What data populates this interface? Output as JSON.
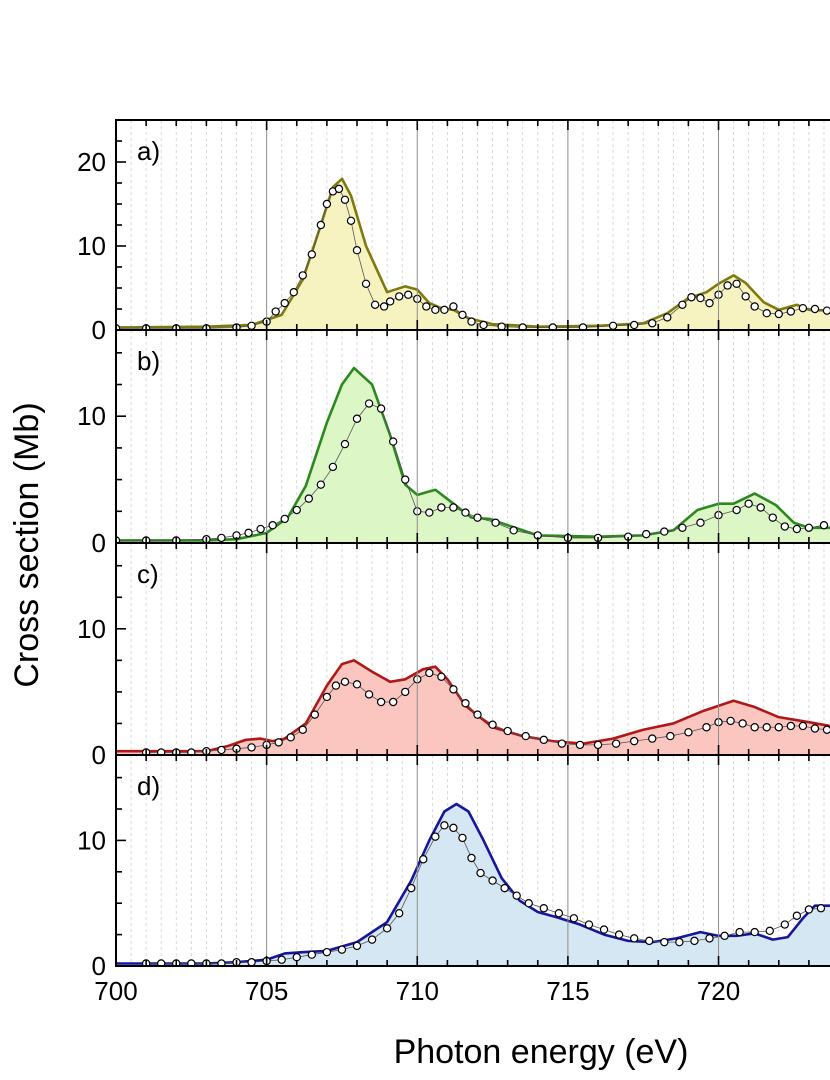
{
  "chart_data": {
    "type": "line",
    "xlabel": "Photon energy (eV)",
    "ylabel": "Cross section (Mb)",
    "xlim": [
      700,
      723.7
    ],
    "x_ticks": [
      "700",
      "705",
      "710",
      "715",
      "720"
    ],
    "x_tick_values": [
      700,
      705,
      710,
      715,
      720
    ],
    "major_gridlines_x": [
      705,
      710,
      715,
      720
    ],
    "minor_gridlines": "dashed, every 0.5 eV",
    "panels": [
      {
        "label": "a)",
        "ylim": [
          0,
          25
        ],
        "y_ticks": [
          "0",
          "10",
          "20"
        ],
        "y_tick_values": [
          0,
          10,
          20
        ],
        "line_color": "#7f7a0e",
        "fill_color": "#f7f3c0",
        "theory_curve": {
          "x": [
            700,
            703,
            704.5,
            705.5,
            706.2,
            706.8,
            707.2,
            707.5,
            707.8,
            708.3,
            709.0,
            709.6,
            710.0,
            710.4,
            710.8,
            711.2,
            711.7,
            712.5,
            714.0,
            716.0,
            717.5,
            718.3,
            719.0,
            719.6,
            720.0,
            720.5,
            720.9,
            721.5,
            722.0,
            722.6,
            723.0,
            723.7
          ],
          "y": [
            0.3,
            0.4,
            0.6,
            1.8,
            6.0,
            12.5,
            17.0,
            18.0,
            16.0,
            10.0,
            4.5,
            5.2,
            4.8,
            3.2,
            2.6,
            2.4,
            1.4,
            0.7,
            0.4,
            0.5,
            0.8,
            2.0,
            3.8,
            4.5,
            5.5,
            6.5,
            5.6,
            3.3,
            2.4,
            3.0,
            2.4,
            2.3
          ]
        },
        "experiment_points": {
          "x": [
            700,
            701,
            702,
            703,
            704,
            704.5,
            705.0,
            705.3,
            705.6,
            705.9,
            706.2,
            706.5,
            706.8,
            707.0,
            707.2,
            707.4,
            707.6,
            707.8,
            708.0,
            708.3,
            708.6,
            708.9,
            709.1,
            709.4,
            709.7,
            710.0,
            710.3,
            710.6,
            710.9,
            711.2,
            711.5,
            711.8,
            712.2,
            712.8,
            713.5,
            714.5,
            715.5,
            716.5,
            717.2,
            717.8,
            718.3,
            718.8,
            719.1,
            719.4,
            719.7,
            720.0,
            720.3,
            720.6,
            720.9,
            721.2,
            721.6,
            722.0,
            722.4,
            722.8,
            723.2,
            723.6
          ],
          "y": [
            0.2,
            0.2,
            0.2,
            0.2,
            0.3,
            0.5,
            1.0,
            2.2,
            3.2,
            4.5,
            6.5,
            9.0,
            12.5,
            15.0,
            16.5,
            16.8,
            15.5,
            13.0,
            9.5,
            5.5,
            3.0,
            2.8,
            3.4,
            4.0,
            4.2,
            3.7,
            2.8,
            2.4,
            2.4,
            2.8,
            1.8,
            1.0,
            0.6,
            0.4,
            0.3,
            0.3,
            0.3,
            0.5,
            0.6,
            0.8,
            1.5,
            3.0,
            3.9,
            3.8,
            3.2,
            4.2,
            5.3,
            5.5,
            4.0,
            2.8,
            2.0,
            1.9,
            2.2,
            2.6,
            2.5,
            2.3
          ]
        }
      },
      {
        "label": "b)",
        "ylim": [
          0,
          16.8
        ],
        "y_ticks": [
          "0",
          "10"
        ],
        "y_tick_values": [
          0,
          10
        ],
        "line_color": "#2b8a1e",
        "fill_color": "#dcf6c6",
        "theory_curve": {
          "x": [
            700,
            703,
            704,
            705,
            705.7,
            706.3,
            707.0,
            707.5,
            707.9,
            708.5,
            709.1,
            709.6,
            710.0,
            710.6,
            711.2,
            711.8,
            712.4,
            713.0,
            714.0,
            716.0,
            717.5,
            718.5,
            719.3,
            720.0,
            720.5,
            721.2,
            721.9,
            722.5,
            723.0,
            723.7
          ],
          "y": [
            0.2,
            0.2,
            0.3,
            0.8,
            2.0,
            4.5,
            9.5,
            12.5,
            13.8,
            12.5,
            8.5,
            4.6,
            3.8,
            4.2,
            3.1,
            2.0,
            1.9,
            1.4,
            0.6,
            0.5,
            0.6,
            1.0,
            2.6,
            3.1,
            3.1,
            3.9,
            3.0,
            1.6,
            1.2,
            1.2
          ]
        },
        "experiment_points": {
          "x": [
            700,
            701,
            702,
            703,
            703.5,
            704.0,
            704.4,
            704.8,
            705.2,
            705.6,
            706.0,
            706.4,
            706.8,
            707.2,
            707.6,
            708.0,
            708.4,
            708.8,
            709.2,
            709.6,
            710.0,
            710.4,
            710.8,
            711.2,
            711.6,
            712.0,
            712.6,
            713.2,
            714.0,
            715.0,
            716.0,
            717.0,
            717.6,
            718.2,
            718.8,
            719.4,
            720.0,
            720.6,
            721.0,
            721.4,
            721.8,
            722.2,
            722.6,
            723.0,
            723.5
          ],
          "y": [
            0.2,
            0.2,
            0.2,
            0.3,
            0.4,
            0.6,
            0.8,
            1.1,
            1.4,
            1.9,
            2.6,
            3.5,
            4.6,
            6.0,
            7.8,
            9.8,
            11.0,
            10.6,
            8.0,
            5.0,
            2.5,
            2.4,
            2.8,
            2.8,
            2.4,
            2.0,
            1.6,
            1.0,
            0.6,
            0.4,
            0.4,
            0.5,
            0.7,
            0.9,
            1.2,
            1.6,
            2.2,
            2.6,
            3.1,
            2.8,
            2.0,
            1.3,
            1.1,
            1.2,
            1.4
          ]
        }
      },
      {
        "label": "c)",
        "ylim": [
          0,
          16.8
        ],
        "y_ticks": [
          "0",
          "10"
        ],
        "y_tick_values": [
          0,
          10
        ],
        "line_color": "#b01818",
        "fill_color": "#fbc6bf",
        "theory_curve": {
          "x": [
            700,
            703,
            703.7,
            704.3,
            704.8,
            705.2,
            705.6,
            706.3,
            707.0,
            707.5,
            707.9,
            708.5,
            709.1,
            709.6,
            710.2,
            710.6,
            711.0,
            711.6,
            712.5,
            713.5,
            714.5,
            715.5,
            716.5,
            717.5,
            718.5,
            719.5,
            720.5,
            721.2,
            722.0,
            723.0,
            723.7
          ],
          "y": [
            0.3,
            0.3,
            0.7,
            1.2,
            1.3,
            1.1,
            1.3,
            2.5,
            5.5,
            7.2,
            7.5,
            6.6,
            5.8,
            6.0,
            6.8,
            7.0,
            6.0,
            3.9,
            2.2,
            1.5,
            1.1,
            0.9,
            1.3,
            2.0,
            2.5,
            3.5,
            4.3,
            3.8,
            3.0,
            2.6,
            2.3
          ]
        },
        "experiment_points": {
          "x": [
            701.0,
            701.5,
            702.0,
            702.5,
            703.0,
            703.5,
            704.0,
            704.5,
            705.0,
            705.4,
            705.8,
            706.2,
            706.6,
            707.0,
            707.3,
            707.6,
            708.0,
            708.4,
            708.8,
            709.2,
            709.6,
            710.0,
            710.4,
            710.8,
            711.2,
            711.6,
            712.0,
            712.5,
            713.0,
            713.6,
            714.2,
            714.8,
            715.4,
            716.0,
            716.6,
            717.2,
            717.8,
            718.4,
            719.0,
            719.6,
            720.0,
            720.4,
            720.8,
            721.2,
            721.6,
            722.0,
            722.4,
            722.8,
            723.2,
            723.6
          ],
          "y": [
            0.2,
            0.2,
            0.2,
            0.2,
            0.3,
            0.4,
            0.5,
            0.6,
            0.8,
            1.0,
            1.4,
            2.0,
            3.2,
            4.6,
            5.5,
            5.8,
            5.6,
            4.8,
            4.2,
            4.2,
            5.0,
            6.0,
            6.5,
            6.2,
            5.2,
            4.1,
            3.2,
            2.4,
            1.9,
            1.5,
            1.2,
            0.9,
            0.8,
            0.8,
            0.9,
            1.1,
            1.3,
            1.5,
            1.8,
            2.2,
            2.6,
            2.7,
            2.5,
            2.2,
            2.2,
            2.2,
            2.3,
            2.3,
            2.1,
            2.0
          ]
        }
      },
      {
        "label": "d)",
        "ylim": [
          0,
          16.8
        ],
        "y_ticks": [
          "0",
          "10"
        ],
        "y_tick_values": [
          0,
          10
        ],
        "line_color": "#15169c",
        "fill_color": "#d4e7f3",
        "theory_curve": {
          "x": [
            700,
            703,
            704,
            705,
            705.6,
            706.2,
            707.0,
            708.0,
            709.0,
            709.8,
            710.4,
            710.9,
            711.3,
            711.7,
            712.2,
            712.8,
            713.4,
            714.0,
            714.6,
            715.4,
            716.2,
            717.0,
            717.8,
            718.6,
            719.4,
            720.0,
            720.6,
            721.2,
            721.8,
            722.3,
            722.8,
            723.2,
            723.7
          ],
          "y": [
            0.2,
            0.2,
            0.3,
            0.5,
            1.0,
            1.1,
            1.2,
            1.9,
            3.5,
            6.8,
            10.0,
            12.3,
            12.9,
            12.3,
            10.0,
            7.0,
            5.2,
            4.3,
            3.9,
            3.3,
            2.5,
            2.0,
            1.9,
            2.2,
            2.7,
            2.4,
            2.4,
            2.6,
            2.1,
            2.3,
            3.8,
            4.8,
            4.8
          ]
        },
        "experiment_points": {
          "x": [
            701.0,
            701.5,
            702.0,
            702.5,
            703.0,
            703.5,
            704.0,
            704.5,
            705.0,
            705.5,
            706.0,
            706.5,
            707.0,
            707.5,
            708.0,
            708.5,
            709.0,
            709.4,
            709.8,
            710.2,
            710.6,
            710.9,
            711.2,
            711.5,
            711.8,
            712.1,
            712.5,
            712.9,
            713.3,
            713.7,
            714.2,
            714.7,
            715.2,
            715.7,
            716.2,
            716.7,
            717.2,
            717.7,
            718.2,
            718.7,
            719.2,
            719.7,
            720.2,
            720.7,
            721.2,
            721.7,
            722.2,
            722.6,
            723.0,
            723.4
          ],
          "y": [
            0.2,
            0.2,
            0.2,
            0.2,
            0.2,
            0.2,
            0.3,
            0.3,
            0.4,
            0.5,
            0.7,
            0.9,
            1.1,
            1.3,
            1.6,
            2.1,
            3.0,
            4.2,
            6.2,
            8.5,
            10.3,
            11.2,
            11.0,
            10.2,
            8.6,
            7.4,
            6.8,
            6.2,
            5.6,
            5.0,
            4.6,
            4.2,
            3.8,
            3.3,
            2.9,
            2.5,
            2.2,
            2.0,
            1.9,
            1.9,
            2.0,
            2.2,
            2.4,
            2.7,
            2.7,
            2.8,
            3.3,
            4.0,
            4.5,
            4.6
          ]
        }
      }
    ]
  }
}
